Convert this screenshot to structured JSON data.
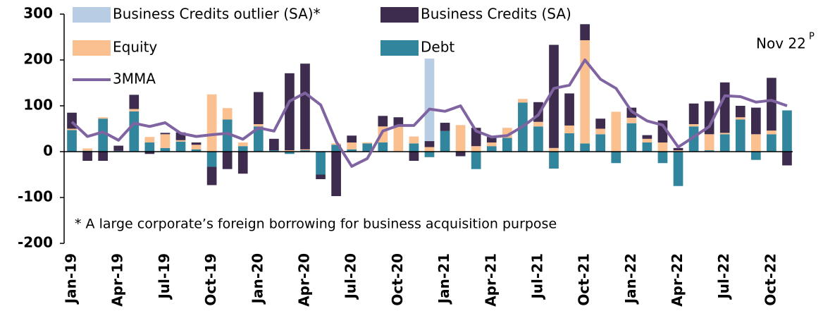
{
  "chart_data": {
    "type": "bar",
    "stacked": true,
    "categories": [
      "Jan-19",
      null,
      null,
      "Apr-19",
      null,
      null,
      "Jul-19",
      null,
      null,
      "Oct-19",
      null,
      null,
      "Jan-20",
      null,
      null,
      "Apr-20",
      null,
      null,
      "Jul-20",
      null,
      null,
      "Oct-20",
      null,
      null,
      "Jan-21",
      null,
      null,
      "Apr-21",
      null,
      null,
      "Jul-21",
      null,
      null,
      "Oct-21",
      null,
      null,
      "Jan-22",
      null,
      null,
      "Apr-22",
      null,
      null,
      "Jul-22",
      null,
      null,
      "Oct-22",
      null
    ],
    "series": [
      {
        "name": "Debt",
        "color": "#31859c",
        "values": [
          47,
          2,
          72,
          2,
          88,
          20,
          8,
          22,
          5,
          -33,
          70,
          12,
          55,
          3,
          -5,
          3,
          -50,
          15,
          5,
          18,
          20,
          0,
          18,
          -12,
          45,
          0,
          -38,
          12,
          30,
          107,
          55,
          -37,
          40,
          18,
          38,
          -25,
          62,
          20,
          -25,
          -75,
          55,
          3,
          38,
          70,
          -18,
          38,
          90
        ]
      },
      {
        "name": "Equity",
        "color": "#fac090",
        "values": [
          3,
          5,
          3,
          0,
          5,
          12,
          30,
          3,
          10,
          125,
          25,
          8,
          5,
          0,
          3,
          2,
          0,
          3,
          15,
          2,
          35,
          55,
          15,
          10,
          0,
          58,
          12,
          8,
          22,
          8,
          10,
          8,
          17,
          225,
          12,
          87,
          12,
          8,
          20,
          3,
          5,
          35,
          3,
          5,
          38,
          8,
          0
        ]
      },
      {
        "name": "Business Credits (SA)",
        "color": "#3d2c4e",
        "values": [
          35,
          -20,
          -20,
          11,
          31,
          -5,
          3,
          17,
          5,
          -40,
          -38,
          -48,
          70,
          25,
          168,
          187,
          -10,
          -97,
          15,
          0,
          23,
          20,
          -20,
          13,
          18,
          -10,
          40,
          12,
          0,
          0,
          43,
          225,
          70,
          35,
          22,
          0,
          22,
          8,
          48,
          5,
          45,
          72,
          110,
          25,
          58,
          115,
          -30
        ]
      },
      {
        "name": "Business Credits outlier (SA)*",
        "color": "#b8cce4",
        "values": [
          null,
          null,
          null,
          null,
          null,
          null,
          null,
          null,
          null,
          null,
          null,
          null,
          null,
          null,
          null,
          null,
          null,
          null,
          null,
          null,
          null,
          null,
          null,
          180,
          null,
          null,
          null,
          null,
          null,
          null,
          null,
          null,
          null,
          null,
          null,
          null,
          null,
          null,
          null,
          null,
          null,
          null,
          null,
          null,
          null,
          null,
          null
        ]
      },
      {
        "name": "3MMA",
        "type": "line",
        "color": "#8064a2",
        "values": [
          65,
          33,
          43,
          25,
          62,
          55,
          63,
          40,
          33,
          37,
          40,
          27,
          52,
          45,
          110,
          128,
          102,
          22,
          -32,
          -15,
          45,
          57,
          57,
          93,
          88,
          100,
          45,
          32,
          35,
          55,
          80,
          138,
          145,
          200,
          158,
          138,
          88,
          67,
          58,
          10,
          32,
          55,
          122,
          120,
          108,
          112,
          100
        ]
      }
    ],
    "ylim": [
      -200,
      300
    ],
    "yticks": [
      -200,
      -100,
      0,
      100,
      200,
      300
    ],
    "annotations": [
      {
        "text": "Nov 22",
        "superscript": "P"
      },
      {
        "text": "* A large corporate’s foreign borrowing for business acquisition purpose"
      }
    ]
  }
}
